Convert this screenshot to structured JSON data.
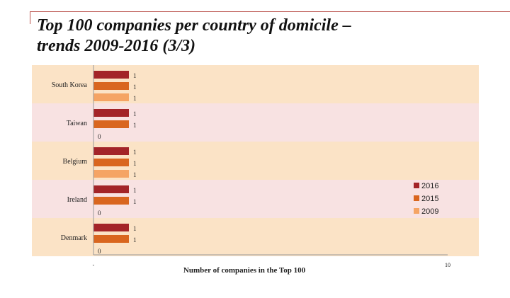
{
  "page": {
    "title_line1": "Top 100 companies per country of domicile –",
    "title_line2": "trends 2009-2016 (3/3)"
  },
  "chart_data": {
    "type": "bar",
    "orientation": "horizontal",
    "categories": [
      "South Korea",
      "Taiwan",
      "Belgium",
      "Ireland",
      "Denmark"
    ],
    "series": [
      {
        "name": "2016",
        "values": [
          1,
          1,
          1,
          1,
          1
        ],
        "color": "#a32428"
      },
      {
        "name": "2015",
        "values": [
          1,
          1,
          1,
          1,
          1
        ],
        "color": "#d9661f"
      },
      {
        "name": "2009",
        "values": [
          1,
          0,
          1,
          0,
          0
        ],
        "color": "#f5a464"
      }
    ],
    "xlabel": "Number of companies in the Top 100",
    "xlim": [
      0,
      10
    ],
    "x_tick_labels": [
      "-",
      "10"
    ],
    "legend_position": "right",
    "band_colors": [
      "#fbe3c6",
      "#f8e2e2"
    ]
  }
}
